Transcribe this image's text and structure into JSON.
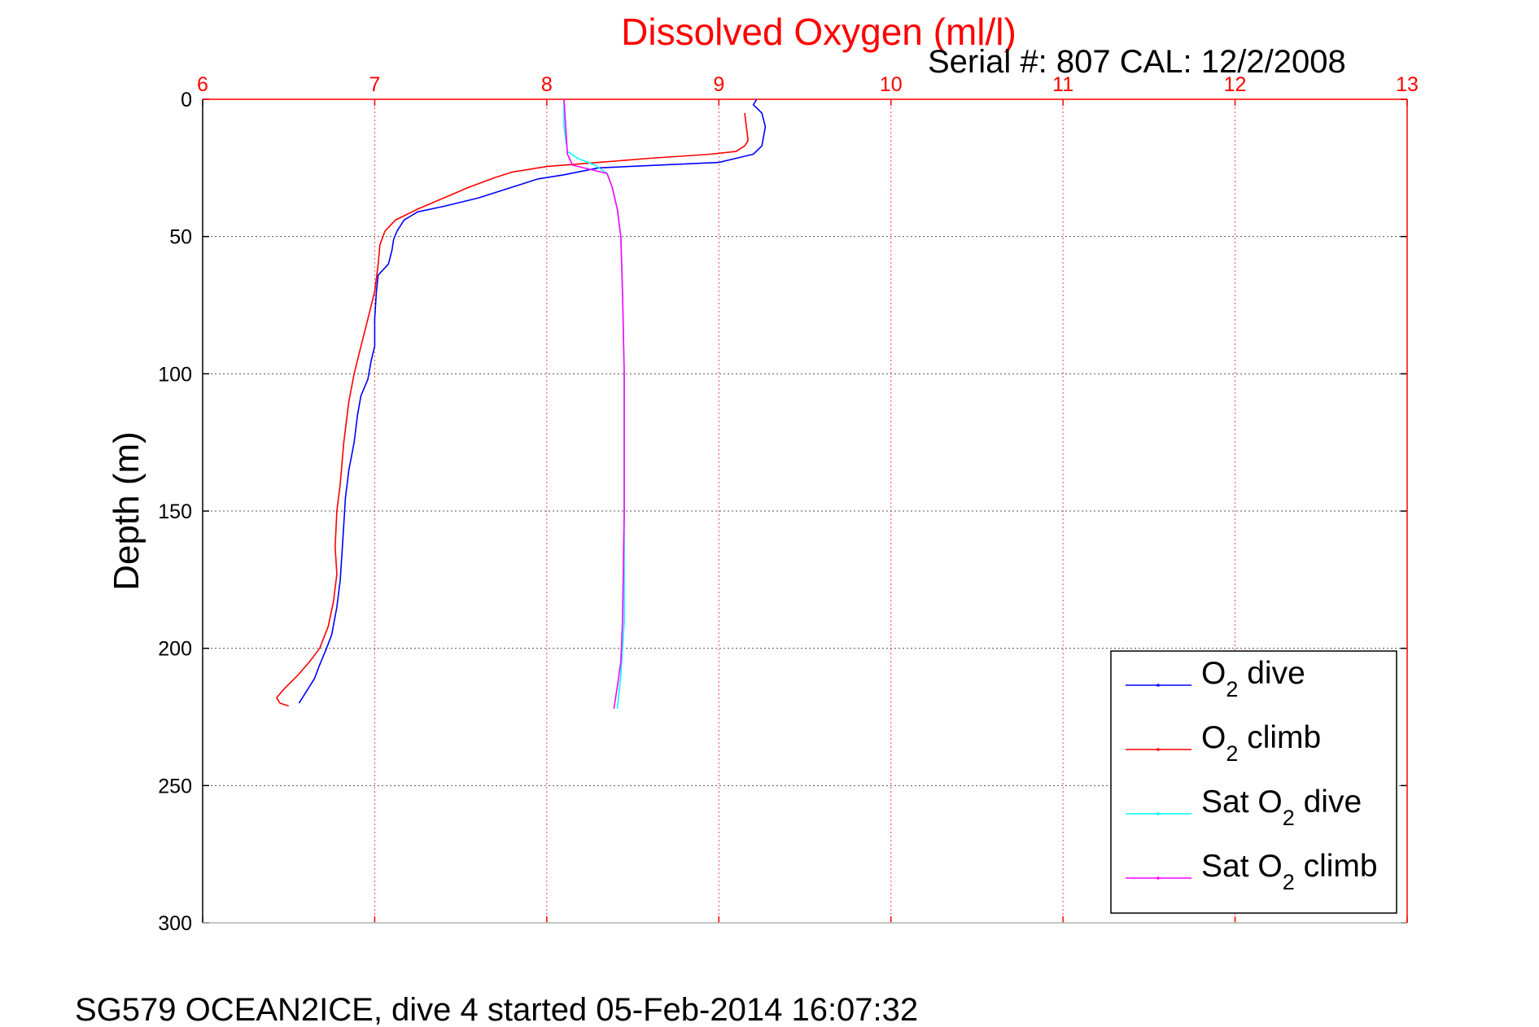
{
  "chart_data": {
    "type": "line",
    "title": "Dissolved Oxygen (ml/l)",
    "subtitle": "Serial #: 807  CAL: 12/2/2008",
    "xlabel": "",
    "ylabel": "Depth (m)",
    "footer": "SG579 OCEAN2ICE, dive 4 started 05-Feb-2014 16:07:32",
    "xlim": [
      6,
      13
    ],
    "ylim": [
      0,
      300
    ],
    "y_reversed": true,
    "x_axis_position": "top",
    "xticks": [
      "6",
      "7",
      "8",
      "9",
      "10",
      "11",
      "12",
      "13"
    ],
    "yticks": [
      "0",
      "50",
      "100",
      "150",
      "200",
      "250",
      "300"
    ],
    "grid": true,
    "legend_position": "lower-right",
    "colors": {
      "title": "#ff0000",
      "xaxis": "#ff0000",
      "yaxis": "#000000"
    },
    "series": [
      {
        "name": "O2 dive",
        "legend_base": "O",
        "legend_sub": "2",
        "legend_rest": " dive",
        "color": "#0000ff",
        "points": [
          [
            9.22,
            0
          ],
          [
            9.2,
            2
          ],
          [
            9.25,
            5
          ],
          [
            9.27,
            10
          ],
          [
            9.25,
            17
          ],
          [
            9.2,
            20
          ],
          [
            9.0,
            23
          ],
          [
            8.3,
            25
          ],
          [
            8.1,
            27.5
          ],
          [
            7.95,
            29
          ],
          [
            7.8,
            32
          ],
          [
            7.6,
            36
          ],
          [
            7.4,
            39
          ],
          [
            7.25,
            41
          ],
          [
            7.17,
            44
          ],
          [
            7.13,
            48
          ],
          [
            7.11,
            51
          ],
          [
            7.1,
            55
          ],
          [
            7.08,
            60
          ],
          [
            7.02,
            64
          ],
          [
            7.01,
            70
          ],
          [
            7.0,
            80
          ],
          [
            7.0,
            90
          ],
          [
            6.98,
            95
          ],
          [
            6.96,
            102
          ],
          [
            6.92,
            108
          ],
          [
            6.9,
            115
          ],
          [
            6.88,
            125
          ],
          [
            6.85,
            135
          ],
          [
            6.83,
            145
          ],
          [
            6.82,
            155
          ],
          [
            6.81,
            165
          ],
          [
            6.8,
            175
          ],
          [
            6.78,
            185
          ],
          [
            6.75,
            195
          ],
          [
            6.72,
            200
          ],
          [
            6.68,
            206
          ],
          [
            6.65,
            211
          ],
          [
            6.6,
            216
          ],
          [
            6.56,
            220
          ]
        ]
      },
      {
        "name": "O2 climb",
        "legend_base": "O",
        "legend_sub": "2",
        "legend_rest": " climb",
        "color": "#ff0000",
        "points": [
          [
            6.5,
            221
          ],
          [
            6.45,
            220
          ],
          [
            6.43,
            218
          ],
          [
            6.47,
            215
          ],
          [
            6.55,
            210
          ],
          [
            6.62,
            205
          ],
          [
            6.68,
            200
          ],
          [
            6.73,
            192
          ],
          [
            6.76,
            183
          ],
          [
            6.78,
            173
          ],
          [
            6.77,
            163
          ],
          [
            6.78,
            150
          ],
          [
            6.8,
            140
          ],
          [
            6.82,
            125
          ],
          [
            6.85,
            110
          ],
          [
            6.88,
            100
          ],
          [
            6.92,
            90
          ],
          [
            6.96,
            80
          ],
          [
            7.0,
            70
          ],
          [
            7.02,
            60
          ],
          [
            7.03,
            53
          ],
          [
            7.06,
            48
          ],
          [
            7.12,
            44
          ],
          [
            7.25,
            40
          ],
          [
            7.4,
            36
          ],
          [
            7.55,
            32
          ],
          [
            7.7,
            28.5
          ],
          [
            7.8,
            26.5
          ],
          [
            8.0,
            24.5
          ],
          [
            8.3,
            23
          ],
          [
            8.6,
            21.5
          ],
          [
            8.95,
            20
          ],
          [
            9.1,
            19
          ],
          [
            9.15,
            17
          ],
          [
            9.17,
            15
          ],
          [
            9.16,
            10
          ],
          [
            9.15,
            5
          ]
        ]
      },
      {
        "name": "Sat O2 dive",
        "legend_base": "Sat O",
        "legend_sub": "2",
        "legend_rest": " dive",
        "color": "#00ffff",
        "points": [
          [
            8.1,
            0
          ],
          [
            8.1,
            10
          ],
          [
            8.12,
            19
          ],
          [
            8.18,
            21.5
          ],
          [
            8.28,
            24
          ],
          [
            8.35,
            27
          ],
          [
            8.38,
            32
          ],
          [
            8.41,
            40
          ],
          [
            8.43,
            50
          ],
          [
            8.44,
            70
          ],
          [
            8.45,
            100
          ],
          [
            8.45,
            150
          ],
          [
            8.45,
            190
          ],
          [
            8.43,
            210
          ],
          [
            8.41,
            222
          ]
        ]
      },
      {
        "name": "Sat O2 climb",
        "legend_base": "Sat O",
        "legend_sub": "2",
        "legend_rest": " climb",
        "color": "#ff00ff",
        "points": [
          [
            8.39,
            222
          ],
          [
            8.41,
            214
          ],
          [
            8.43,
            205
          ],
          [
            8.44,
            190
          ],
          [
            8.45,
            150
          ],
          [
            8.45,
            100
          ],
          [
            8.44,
            70
          ],
          [
            8.43,
            50
          ],
          [
            8.41,
            40
          ],
          [
            8.38,
            32
          ],
          [
            8.35,
            27
          ],
          [
            8.25,
            25.5
          ],
          [
            8.15,
            24
          ],
          [
            8.12,
            20
          ],
          [
            8.11,
            10
          ],
          [
            8.1,
            0
          ]
        ]
      }
    ]
  }
}
